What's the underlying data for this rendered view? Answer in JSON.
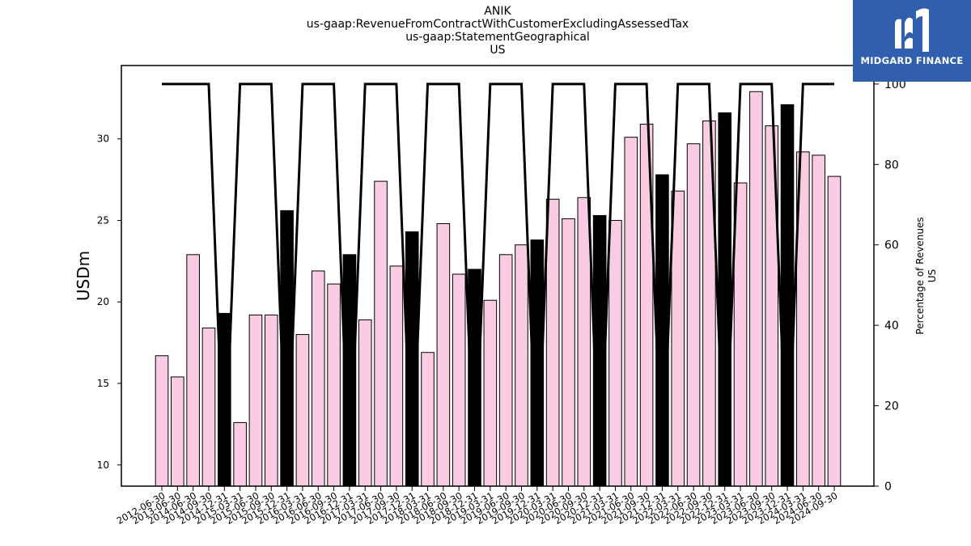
{
  "titles": [
    "ANIK",
    "us-gaap:RevenueFromContractWithCustomerExcludingAssessedTax",
    "us-gaap:StatementGeographical",
    "US"
  ],
  "logo": {
    "text": "MIDGARD FINANCE",
    "background": "#2f5fae"
  },
  "chart_data": {
    "type": "bar",
    "ylabel": "USDm",
    "y2label": [
      "Percentage of Revenues",
      "US"
    ],
    "ylim": [
      8.7,
      34.5
    ],
    "y2lim": [
      0,
      104.6
    ],
    "yticks": [
      "10",
      "15",
      "20",
      "25",
      "30"
    ],
    "y2ticks": [
      "0",
      "20",
      "40",
      "60",
      "80",
      "100"
    ],
    "grid": false,
    "colors": {
      "q4_bar": "#000000",
      "other_bar": "#f9cce3",
      "edge": "#000000",
      "line": "#000000"
    },
    "categories": [
      "2012-06-30",
      "2013-06-30",
      "2014-06-30",
      "2014-09-30",
      "2014-12-31",
      "2015-03-31",
      "2015-06-30",
      "2015-09-30",
      "2015-12-31",
      "2016-03-31",
      "2016-06-30",
      "2016-09-30",
      "2016-12-31",
      "2017-03-31",
      "2017-06-30",
      "2017-09-30",
      "2017-12-31",
      "2018-03-31",
      "2018-06-30",
      "2018-09-30",
      "2018-12-31",
      "2019-03-31",
      "2019-06-30",
      "2019-09-30",
      "2019-12-31",
      "2020-03-31",
      "2020-06-30",
      "2020-09-30",
      "2020-12-31",
      "2021-03-31",
      "2021-06-30",
      "2021-09-30",
      "2021-12-31",
      "2022-03-31",
      "2022-06-30",
      "2022-09-30",
      "2022-12-31",
      "2023-03-31",
      "2023-06-30",
      "2023-09-30",
      "2023-12-31",
      "2024-03-31",
      "2024-06-30",
      "2024-09-30"
    ],
    "series": [
      {
        "type": "bar",
        "values": [
          16.7,
          15.4,
          22.9,
          18.4,
          19.3,
          12.6,
          19.2,
          19.2,
          25.6,
          18.0,
          21.9,
          21.1,
          22.9,
          18.9,
          27.4,
          22.2,
          24.3,
          16.9,
          24.8,
          21.7,
          22.0,
          20.1,
          22.9,
          23.5,
          23.8,
          26.3,
          25.1,
          26.4,
          25.3,
          25.0,
          30.1,
          30.9,
          27.8,
          26.8,
          29.7,
          31.1,
          31.6,
          27.3,
          32.9,
          30.8,
          32.1,
          29.2,
          29.0,
          27.7
        ],
        "highlight": [
          false,
          false,
          false,
          false,
          true,
          false,
          false,
          false,
          true,
          false,
          false,
          false,
          true,
          false,
          false,
          false,
          true,
          false,
          false,
          false,
          true,
          false,
          false,
          false,
          true,
          false,
          false,
          false,
          true,
          false,
          false,
          false,
          true,
          false,
          false,
          false,
          true,
          false,
          false,
          false,
          true,
          false,
          false,
          false
        ]
      },
      {
        "type": "line",
        "axis": "y2",
        "values": [
          100,
          100,
          100,
          100,
          0,
          100,
          100,
          100,
          0,
          100,
          100,
          100,
          0,
          100,
          100,
          100,
          0,
          100,
          100,
          100,
          0,
          100,
          100,
          100,
          0,
          100,
          100,
          100,
          0,
          100,
          100,
          100,
          0,
          100,
          100,
          100,
          0,
          100,
          100,
          100,
          0,
          100,
          100,
          100
        ]
      }
    ]
  }
}
